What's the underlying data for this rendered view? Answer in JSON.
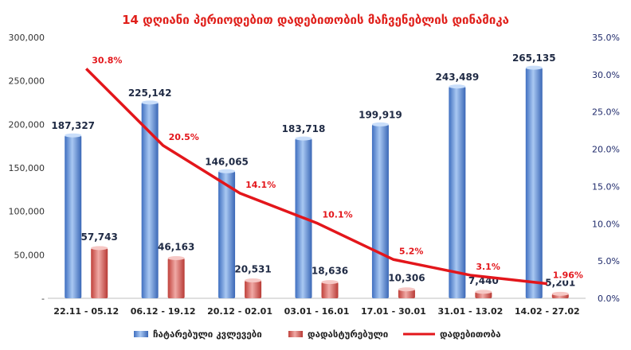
{
  "chart_data": {
    "type": "bar",
    "title": "14 დღიანი პერიოდებით დადებითობის მაჩვენებლის დინამიკა",
    "categories": [
      "22.11 - 05.12",
      "06.12 - 19.12",
      "20.12 - 02.01",
      "03.01 - 16.01",
      "17.01 - 30.01",
      "31.01 - 13.02",
      "14.02 - 27.02"
    ],
    "series": [
      {
        "name": "ჩატარებული კვლევები",
        "kind": "bar",
        "axis": "left",
        "values": [
          187327,
          225142,
          146065,
          183718,
          199919,
          243489,
          265135
        ],
        "labels": [
          "187,327",
          "225,142",
          "146,065",
          "183,718",
          "199,919",
          "243,489",
          "265,135"
        ]
      },
      {
        "name": "დადასტურებული",
        "kind": "bar",
        "axis": "left",
        "values": [
          57743,
          46163,
          20531,
          18636,
          10306,
          7440,
          5201
        ],
        "labels": [
          "57,743",
          "46,163",
          "20,531",
          "18,636",
          "10,306",
          "7,440",
          "5,201"
        ]
      },
      {
        "name": "დადებითობა",
        "kind": "line",
        "axis": "right",
        "values": [
          30.8,
          20.5,
          14.1,
          10.1,
          5.2,
          3.1,
          1.96
        ],
        "labels": [
          "30.8%",
          "20.5%",
          "14.1%",
          "10.1%",
          "5.2%",
          "3.1%",
          "1.96%"
        ]
      }
    ],
    "yleft": {
      "lim": [
        0,
        300000
      ],
      "ticks": [
        "-",
        "50,000",
        "100,000",
        "150,000",
        "200,000",
        "250,000",
        "300,000"
      ]
    },
    "yright": {
      "lim": [
        0,
        35
      ],
      "ticks": [
        "0.0%",
        "5.0%",
        "10.0%",
        "15.0%",
        "20.0%",
        "25.0%",
        "30.0%",
        "35.0%"
      ]
    },
    "grid": false,
    "legend": "bottom",
    "colors": {
      "title": "#e0201b",
      "bar_tested": "#5b8fd6",
      "bar_confirmed": "#d9534f",
      "line": "#e3161b",
      "axis_text_left": "#333333",
      "axis_text_right": "#1f2a6b"
    }
  }
}
